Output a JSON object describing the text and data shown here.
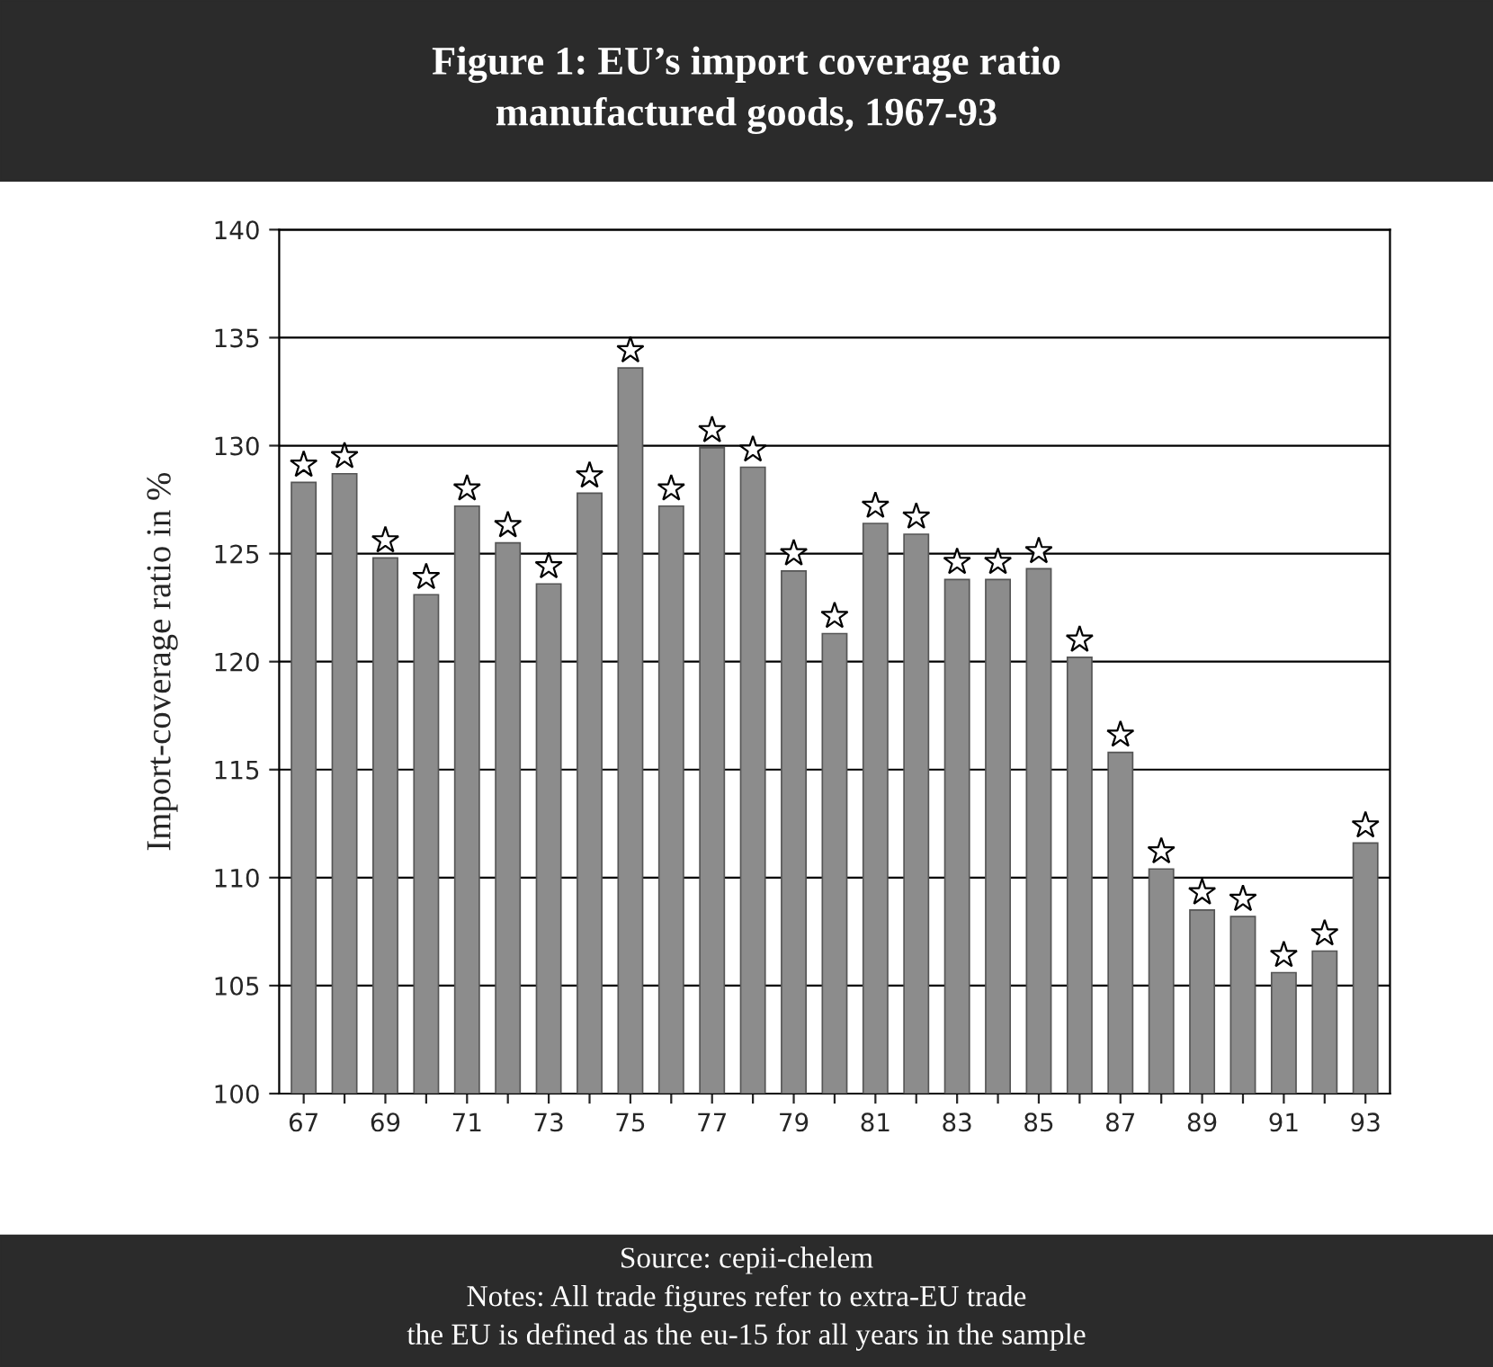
{
  "chart_data": {
    "type": "bar",
    "title": "Figure 1: EU’s import coverage ratio\nmanufactured goods, 1967-93",
    "ylabel": "Import-coverage ratio in %",
    "categories": [
      "67",
      null,
      "69",
      null,
      "71",
      null,
      "73",
      null,
      "75",
      null,
      "77",
      null,
      "79",
      null,
      "81",
      null,
      "83",
      null,
      "85",
      null,
      "87",
      null,
      "89",
      null,
      "91",
      null,
      "93"
    ],
    "values": [
      128.3,
      128.7,
      124.8,
      123.1,
      127.2,
      125.5,
      123.6,
      127.8,
      133.6,
      127.2,
      129.9,
      129.0,
      124.2,
      121.3,
      126.4,
      125.9,
      123.8,
      123.8,
      124.3,
      120.2,
      115.8,
      110.4,
      108.5,
      108.2,
      105.6,
      106.6,
      111.6
    ],
    "color": "#8c8c8c",
    "marker": "star",
    "ylim": [
      100,
      140
    ],
    "yticks": [
      100,
      105,
      110,
      115,
      120,
      125,
      130,
      135,
      140
    ],
    "grid": "y",
    "annotations": [
      "Source: cepii-chelem",
      "Notes: All trade figures refer to extra-EU trade",
      "the EU is defined as the eu-15 for all years in the sample"
    ]
  }
}
